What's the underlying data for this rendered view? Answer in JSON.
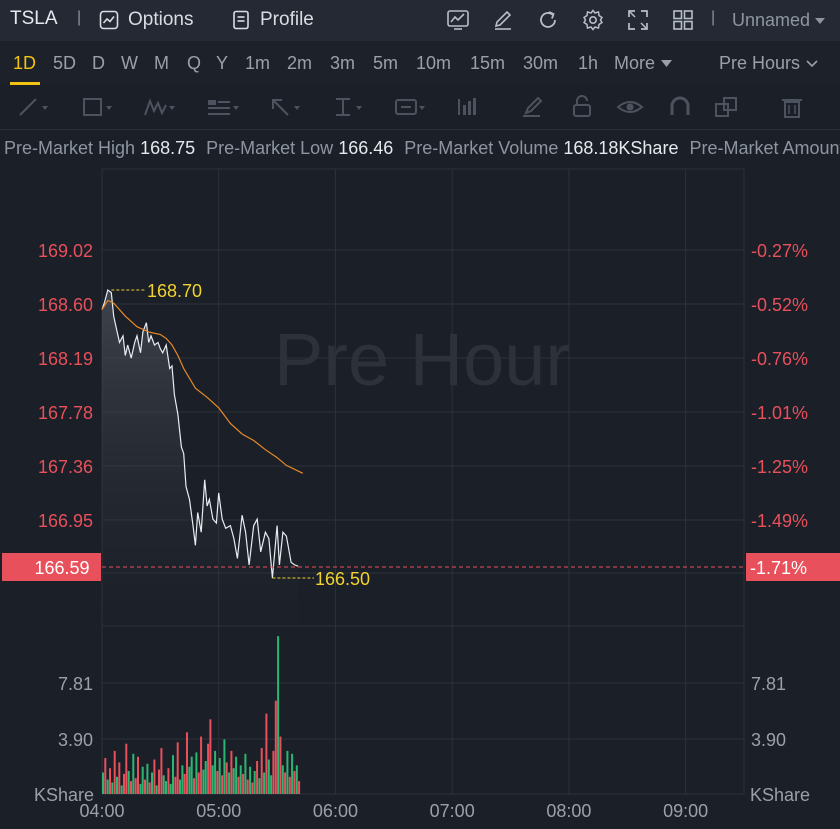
{
  "topbar": {
    "symbol": "TSLA",
    "separator": "|",
    "options_label": "Options",
    "profile_label": "Profile",
    "layout_name": "Unnamed",
    "icons": [
      "chart-indicator-icon",
      "pencil-edit-icon",
      "refresh-icon",
      "settings-gear-icon",
      "fullscreen-icon",
      "grid-layout-icon"
    ]
  },
  "periods": {
    "items": [
      "1D",
      "5D",
      "D",
      "W",
      "M",
      "Q",
      "Y",
      "1m",
      "2m",
      "3m",
      "5m",
      "10m",
      "15m",
      "30m",
      "1h"
    ],
    "active": "1D",
    "more_label": "More",
    "session_label": "Pre Hours"
  },
  "drawing_tools": [
    "trend-line-icon",
    "rectangle-icon",
    "pattern-icon",
    "text-annotation-icon",
    "arrow-icon",
    "vertical-line-icon",
    "text-label-icon",
    "measure-icon",
    "brush-icon",
    "lock-icon",
    "eye-icon",
    "magnet-icon",
    "clone-icon",
    "trash-icon"
  ],
  "stats": {
    "high_label": "Pre-Market High",
    "high_value": "168.75",
    "low_label": "Pre-Market Low",
    "low_value": "166.46",
    "volume_label": "Pre-Market Volume",
    "volume_value": "168.18KShare",
    "amount_label": "Pre-Market Amount"
  },
  "chart_data": {
    "type": "line",
    "watermark": "Pre Hour",
    "price_ticks": [
      "169.02",
      "168.60",
      "168.19",
      "167.78",
      "167.36",
      "166.95"
    ],
    "pct_ticks": [
      "-0.27%",
      "-0.52%",
      "-0.76%",
      "-1.01%",
      "-1.25%",
      "-1.49%"
    ],
    "current_price": "166.59",
    "current_pct": "-1.71%",
    "high_marker": "168.70",
    "low_marker": "166.50",
    "volume_ticks": [
      "7.81",
      "3.90"
    ],
    "volume_unit": "KShare",
    "time_ticks": [
      "04:00",
      "05:00",
      "06:00",
      "07:00",
      "08:00",
      "09:00"
    ],
    "ylim": [
      166.4,
      169.4
    ],
    "price_series_times": [
      4.0,
      4.02,
      4.05,
      4.08,
      4.1,
      4.12,
      4.15,
      4.18,
      4.2,
      4.22,
      4.25,
      4.28,
      4.3,
      4.33,
      4.35,
      4.38,
      4.4,
      4.42,
      4.45,
      4.48,
      4.5,
      4.52,
      4.55,
      4.58,
      4.6,
      4.62,
      4.65,
      4.68,
      4.7,
      4.72,
      4.75,
      4.78,
      4.8,
      4.82,
      4.85,
      4.88,
      4.9,
      4.92,
      4.95,
      4.98,
      5.0,
      5.03,
      5.06,
      5.1,
      5.13,
      5.16,
      5.2,
      5.23,
      5.26,
      5.3,
      5.33,
      5.36,
      5.4,
      5.43,
      5.46,
      5.5,
      5.52,
      5.55,
      5.58,
      5.62,
      5.65,
      5.68
    ],
    "price_series": [
      168.55,
      168.6,
      168.7,
      168.68,
      168.5,
      168.42,
      168.3,
      168.35,
      168.2,
      168.28,
      168.18,
      168.3,
      168.35,
      168.22,
      168.38,
      168.45,
      168.3,
      168.35,
      168.28,
      168.3,
      168.25,
      168.22,
      168.28,
      168.1,
      168.12,
      167.9,
      167.75,
      167.5,
      167.45,
      167.2,
      167.1,
      166.9,
      166.75,
      167.0,
      166.85,
      167.25,
      167.05,
      167.1,
      166.95,
      166.92,
      167.15,
      166.95,
      166.88,
      166.9,
      166.8,
      166.65,
      166.98,
      166.85,
      166.6,
      166.9,
      166.95,
      166.7,
      166.85,
      166.8,
      166.5,
      166.9,
      166.6,
      166.85,
      166.82,
      166.62,
      166.6,
      166.59
    ],
    "avg_series_times": [
      4.0,
      4.05,
      4.1,
      4.2,
      4.3,
      4.4,
      4.5,
      4.55,
      4.6,
      4.65,
      4.7,
      4.8,
      4.9,
      5.0,
      5.1,
      5.2,
      5.3,
      5.4,
      5.5,
      5.58,
      5.65,
      5.72
    ],
    "avg_series": [
      168.55,
      168.62,
      168.6,
      168.5,
      168.42,
      168.38,
      168.36,
      168.33,
      168.28,
      168.2,
      168.1,
      167.95,
      167.88,
      167.8,
      167.68,
      167.6,
      167.55,
      167.48,
      167.42,
      167.36,
      167.33,
      167.3
    ],
    "volume_bars": [
      [
        4.0,
        1.5,
        "up"
      ],
      [
        4.02,
        2.5,
        "dn"
      ],
      [
        4.04,
        1.0,
        "up"
      ],
      [
        4.06,
        1.8,
        "dn"
      ],
      [
        4.08,
        0.8,
        "up"
      ],
      [
        4.1,
        3.0,
        "dn"
      ],
      [
        4.12,
        1.2,
        "up"
      ],
      [
        4.14,
        2.2,
        "dn"
      ],
      [
        4.16,
        0.6,
        "up"
      ],
      [
        4.18,
        1.4,
        "dn"
      ],
      [
        4.2,
        3.5,
        "dn"
      ],
      [
        4.22,
        1.6,
        "up"
      ],
      [
        4.24,
        0.9,
        "dn"
      ],
      [
        4.26,
        2.8,
        "up"
      ],
      [
        4.28,
        1.1,
        "dn"
      ],
      [
        4.3,
        2.6,
        "dn"
      ],
      [
        4.32,
        0.7,
        "up"
      ],
      [
        4.34,
        1.9,
        "up"
      ],
      [
        4.36,
        1.0,
        "dn"
      ],
      [
        4.38,
        2.1,
        "up"
      ],
      [
        4.4,
        0.8,
        "dn"
      ],
      [
        4.42,
        1.5,
        "up"
      ],
      [
        4.44,
        2.4,
        "dn"
      ],
      [
        4.46,
        0.6,
        "up"
      ],
      [
        4.48,
        1.7,
        "dn"
      ],
      [
        4.5,
        3.2,
        "dn"
      ],
      [
        4.52,
        1.3,
        "up"
      ],
      [
        4.54,
        0.9,
        "up"
      ],
      [
        4.56,
        1.8,
        "dn"
      ],
      [
        4.58,
        0.7,
        "up"
      ],
      [
        4.6,
        2.7,
        "up"
      ],
      [
        4.62,
        1.2,
        "dn"
      ],
      [
        4.64,
        3.6,
        "dn"
      ],
      [
        4.66,
        1.0,
        "up"
      ],
      [
        4.68,
        2.0,
        "up"
      ],
      [
        4.7,
        1.4,
        "dn"
      ],
      [
        4.72,
        4.3,
        "dn"
      ],
      [
        4.74,
        1.9,
        "up"
      ],
      [
        4.76,
        2.6,
        "up"
      ],
      [
        4.78,
        1.1,
        "dn"
      ],
      [
        4.8,
        2.9,
        "up"
      ],
      [
        4.82,
        1.5,
        "dn"
      ],
      [
        4.84,
        4.0,
        "dn"
      ],
      [
        4.86,
        1.7,
        "up"
      ],
      [
        4.88,
        2.3,
        "up"
      ],
      [
        4.9,
        3.5,
        "dn"
      ],
      [
        4.92,
        5.2,
        "dn"
      ],
      [
        4.94,
        2.0,
        "up"
      ],
      [
        4.96,
        3.0,
        "up"
      ],
      [
        4.98,
        1.6,
        "dn"
      ],
      [
        5.0,
        2.5,
        "up"
      ],
      [
        5.02,
        1.3,
        "dn"
      ],
      [
        5.04,
        3.8,
        "up"
      ],
      [
        5.06,
        2.2,
        "dn"
      ],
      [
        5.08,
        1.5,
        "up"
      ],
      [
        5.1,
        3.0,
        "dn"
      ],
      [
        5.12,
        1.8,
        "up"
      ],
      [
        5.14,
        2.6,
        "up"
      ],
      [
        5.16,
        1.2,
        "dn"
      ],
      [
        5.18,
        2.0,
        "up"
      ],
      [
        5.2,
        1.4,
        "dn"
      ],
      [
        5.22,
        2.8,
        "up"
      ],
      [
        5.24,
        1.0,
        "dn"
      ],
      [
        5.26,
        1.9,
        "up"
      ],
      [
        5.28,
        0.8,
        "dn"
      ],
      [
        5.3,
        1.6,
        "up"
      ],
      [
        5.32,
        2.3,
        "dn"
      ],
      [
        5.34,
        1.1,
        "up"
      ],
      [
        5.36,
        3.2,
        "dn"
      ],
      [
        5.38,
        1.5,
        "up"
      ],
      [
        5.4,
        5.6,
        "dn"
      ],
      [
        5.42,
        2.4,
        "up"
      ],
      [
        5.44,
        1.3,
        "up"
      ],
      [
        5.46,
        3.0,
        "dn"
      ],
      [
        5.48,
        6.5,
        "dn"
      ],
      [
        5.5,
        11.0,
        "up"
      ],
      [
        5.52,
        4.0,
        "dn"
      ],
      [
        5.54,
        2.0,
        "up"
      ],
      [
        5.56,
        1.5,
        "dn"
      ],
      [
        5.58,
        3.0,
        "up"
      ],
      [
        5.6,
        1.2,
        "dn"
      ],
      [
        5.62,
        2.8,
        "up"
      ],
      [
        5.64,
        1.6,
        "dn"
      ],
      [
        5.66,
        2.0,
        "up"
      ],
      [
        5.68,
        0.9,
        "dn"
      ]
    ],
    "volume_ylim": [
      0,
      11.7
    ],
    "colors": {
      "up": "#2bb673",
      "down": "#e8505b",
      "price_line": "#e9edf2",
      "avg_line": "#e8892a",
      "marker": "#f2d22c",
      "current": "#e8505b"
    }
  }
}
